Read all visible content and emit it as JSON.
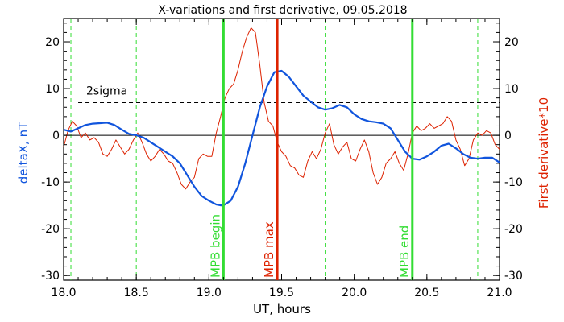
{
  "chart_data": {
    "type": "line",
    "title": "X-variations and first derivative, 09.05.2018",
    "xlabel": "UT, hours",
    "ylabel_left": "deltaX, nT",
    "ylabel_right": "First derivative*10",
    "xlim": [
      18.0,
      21.0
    ],
    "ylim": [
      -31,
      25
    ],
    "x_ticks": [
      "18.0",
      "18.5",
      "19.0",
      "19.5",
      "20.0",
      "20.5",
      "21.0"
    ],
    "y_ticks": [
      "-30",
      "-20",
      "-10",
      "0",
      "10",
      "20"
    ],
    "threshold": {
      "label": "2sigma",
      "value": 7
    },
    "markers": [
      {
        "x": 19.1,
        "label": "MPB begin",
        "color": "#33dd33"
      },
      {
        "x": 19.47,
        "label": "MPB max",
        "color": "#dd2200"
      },
      {
        "x": 20.4,
        "label": "MPB end",
        "color": "#33dd33"
      }
    ],
    "dashed_verticals": [
      18.05,
      18.5,
      19.8,
      20.85
    ],
    "colors": {
      "deltaX": "#1155dd",
      "derivative": "#dd2200",
      "marker_green": "#33dd33"
    },
    "series": [
      {
        "key": "deltaX",
        "x": [
          18.0,
          18.05,
          18.1,
          18.15,
          18.2,
          18.25,
          18.3,
          18.35,
          18.4,
          18.45,
          18.5,
          18.55,
          18.6,
          18.65,
          18.7,
          18.75,
          18.8,
          18.85,
          18.9,
          18.95,
          19.0,
          19.05,
          19.08,
          19.1,
          19.15,
          19.2,
          19.25,
          19.3,
          19.35,
          19.4,
          19.45,
          19.5,
          19.55,
          19.6,
          19.65,
          19.7,
          19.75,
          19.8,
          19.85,
          19.9,
          19.95,
          20.0,
          20.05,
          20.1,
          20.15,
          20.2,
          20.25,
          20.3,
          20.35,
          20.4,
          20.45,
          20.5,
          20.55,
          20.6,
          20.65,
          20.7,
          20.75,
          20.8,
          20.85,
          20.9,
          20.95,
          21.0
        ],
        "values": [
          1.2,
          0.8,
          1.5,
          2.2,
          2.5,
          2.6,
          2.7,
          2.2,
          1.2,
          0.3,
          0.0,
          -0.5,
          -1.5,
          -2.5,
          -3.5,
          -4.5,
          -6.0,
          -8.5,
          -11.0,
          -13.0,
          -14.0,
          -14.8,
          -15.0,
          -15.0,
          -14.0,
          -11.0,
          -6.0,
          0.0,
          6.0,
          10.5,
          13.5,
          13.8,
          12.5,
          10.5,
          8.5,
          7.2,
          6.0,
          5.5,
          5.8,
          6.5,
          6.0,
          4.5,
          3.5,
          3.0,
          2.8,
          2.5,
          1.5,
          -1.0,
          -3.5,
          -5.0,
          -5.2,
          -4.5,
          -3.5,
          -2.2,
          -1.8,
          -2.8,
          -4.0,
          -4.8,
          -5.0,
          -4.8,
          -4.8,
          -5.8
        ]
      },
      {
        "key": "derivative",
        "x": [
          18.0,
          18.03,
          18.06,
          18.09,
          18.12,
          18.15,
          18.18,
          18.21,
          18.24,
          18.27,
          18.3,
          18.33,
          18.36,
          18.39,
          18.42,
          18.45,
          18.48,
          18.51,
          18.54,
          18.57,
          18.6,
          18.63,
          18.66,
          18.69,
          18.72,
          18.75,
          18.78,
          18.81,
          18.84,
          18.87,
          18.9,
          18.93,
          18.96,
          18.99,
          19.02,
          19.05,
          19.08,
          19.11,
          19.14,
          19.17,
          19.2,
          19.23,
          19.26,
          19.29,
          19.32,
          19.35,
          19.38,
          19.41,
          19.44,
          19.47,
          19.5,
          19.53,
          19.56,
          19.59,
          19.62,
          19.65,
          19.68,
          19.71,
          19.74,
          19.77,
          19.8,
          19.83,
          19.86,
          19.89,
          19.92,
          19.95,
          19.98,
          20.01,
          20.04,
          20.07,
          20.1,
          20.13,
          20.16,
          20.19,
          20.22,
          20.25,
          20.28,
          20.31,
          20.34,
          20.37,
          20.4,
          20.43,
          20.46,
          20.49,
          20.52,
          20.55,
          20.58,
          20.61,
          20.64,
          20.67,
          20.7,
          20.73,
          20.76,
          20.79,
          20.82,
          20.85,
          20.88,
          20.91,
          20.94,
          20.97,
          21.0
        ],
        "values": [
          -2.5,
          1.0,
          3.0,
          2.0,
          -0.5,
          0.5,
          -1.0,
          -0.5,
          -1.5,
          -4.0,
          -4.5,
          -3.0,
          -1.0,
          -2.5,
          -4.0,
          -3.0,
          -1.0,
          0.5,
          -1.5,
          -4.0,
          -5.5,
          -4.5,
          -3.0,
          -4.0,
          -5.5,
          -6.0,
          -8.0,
          -10.5,
          -11.5,
          -10.0,
          -9.0,
          -5.0,
          -4.0,
          -4.5,
          -4.5,
          0.5,
          4.0,
          8.0,
          10.0,
          11.0,
          14.0,
          18.0,
          21.0,
          23.0,
          22.0,
          15.0,
          7.0,
          3.0,
          2.0,
          -1.5,
          -3.5,
          -4.5,
          -6.5,
          -7.0,
          -8.5,
          -9.0,
          -5.5,
          -3.5,
          -5.0,
          -3.0,
          0.5,
          2.5,
          -2.0,
          -4.0,
          -2.5,
          -1.5,
          -5.0,
          -5.5,
          -3.0,
          -1.0,
          -3.5,
          -8.0,
          -10.5,
          -9.0,
          -6.0,
          -5.0,
          -3.5,
          -6.0,
          -7.5,
          -4.0,
          0.5,
          2.0,
          1.0,
          1.5,
          2.5,
          1.5,
          2.0,
          2.5,
          4.0,
          3.0,
          -1.0,
          -3.0,
          -6.5,
          -5.0,
          -1.0,
          0.5,
          0.0,
          1.0,
          0.5,
          -2.0,
          -3.0
        ]
      }
    ]
  }
}
